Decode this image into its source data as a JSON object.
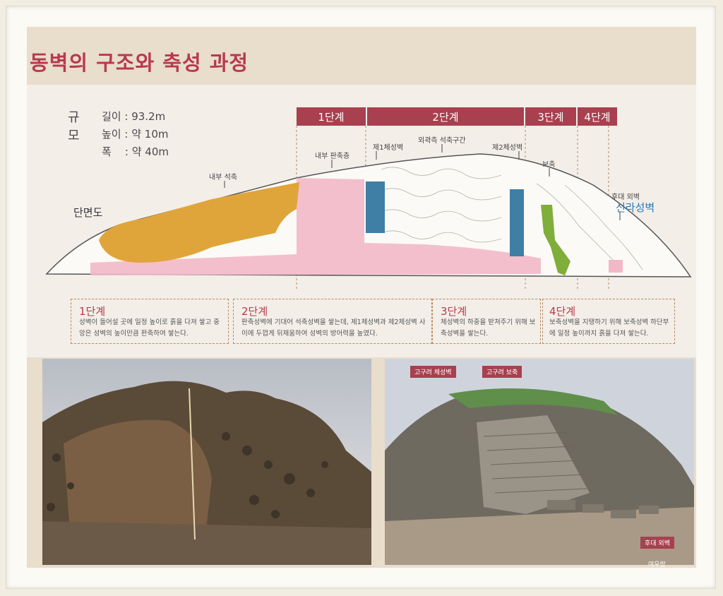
{
  "title": "동벽의 구조와 축성 과정",
  "specs": {
    "label": "규모",
    "rows": [
      {
        "key": "길이",
        "value": "93.2m"
      },
      {
        "key": "높이",
        "value": "약 10m"
      },
      {
        "key": "폭",
        "value": "약 40m"
      }
    ]
  },
  "section_label": "단면도",
  "stages": [
    "1단계",
    "2단계",
    "3단계",
    "4단계"
  ],
  "annotations": {
    "inner_stone": "내부 석축",
    "inner_rammed": "내부 판축층",
    "wall1": "제1체성벽",
    "outer_stone": "외곽측 석축구간",
    "wall2": "제2체성벽",
    "reinforce": "보축",
    "later_outer": "후대 외벽",
    "silla_wall": "신라성벽"
  },
  "steps": [
    {
      "title": "1단계",
      "desc": "성벽이 들어설 곳에 일정 높이로 흙을 다져 쌓고 중앙은 성벽의 높이만큼 판축하여 쌓는다."
    },
    {
      "title": "2단계",
      "desc": "판축성벽에 기대어 석축성벽을 쌓는데, 제1체성벽과 제2체성벽 사이에 두껍게 뒤채움하여 성벽의 방어력을 높였다."
    },
    {
      "title": "3단계",
      "desc": "체성벽의 하중을 받쳐주기 위해 보축성벽을 쌓는다."
    },
    {
      "title": "4단계",
      "desc": "보축성벽을 지탱하기 위해 보축성벽 하단부에 일정 높이까지 흙을 다져 쌓는다."
    }
  ],
  "photo_tags": {
    "goguryeo_wall": "고구려 체성벽",
    "goguryeo_reinforce": "고구려 보축",
    "later_outer": "후대 외벽"
  },
  "signature": "여우랑",
  "colors": {
    "title": "#b83a4c",
    "stage_bar": "#a8404f",
    "inner_stone": "#e0a53a",
    "rammed_earth": "#f2b8c8",
    "wall": "#3f7fa6",
    "reinforce": "#7fae3a",
    "silla": "#2a7ab8"
  }
}
